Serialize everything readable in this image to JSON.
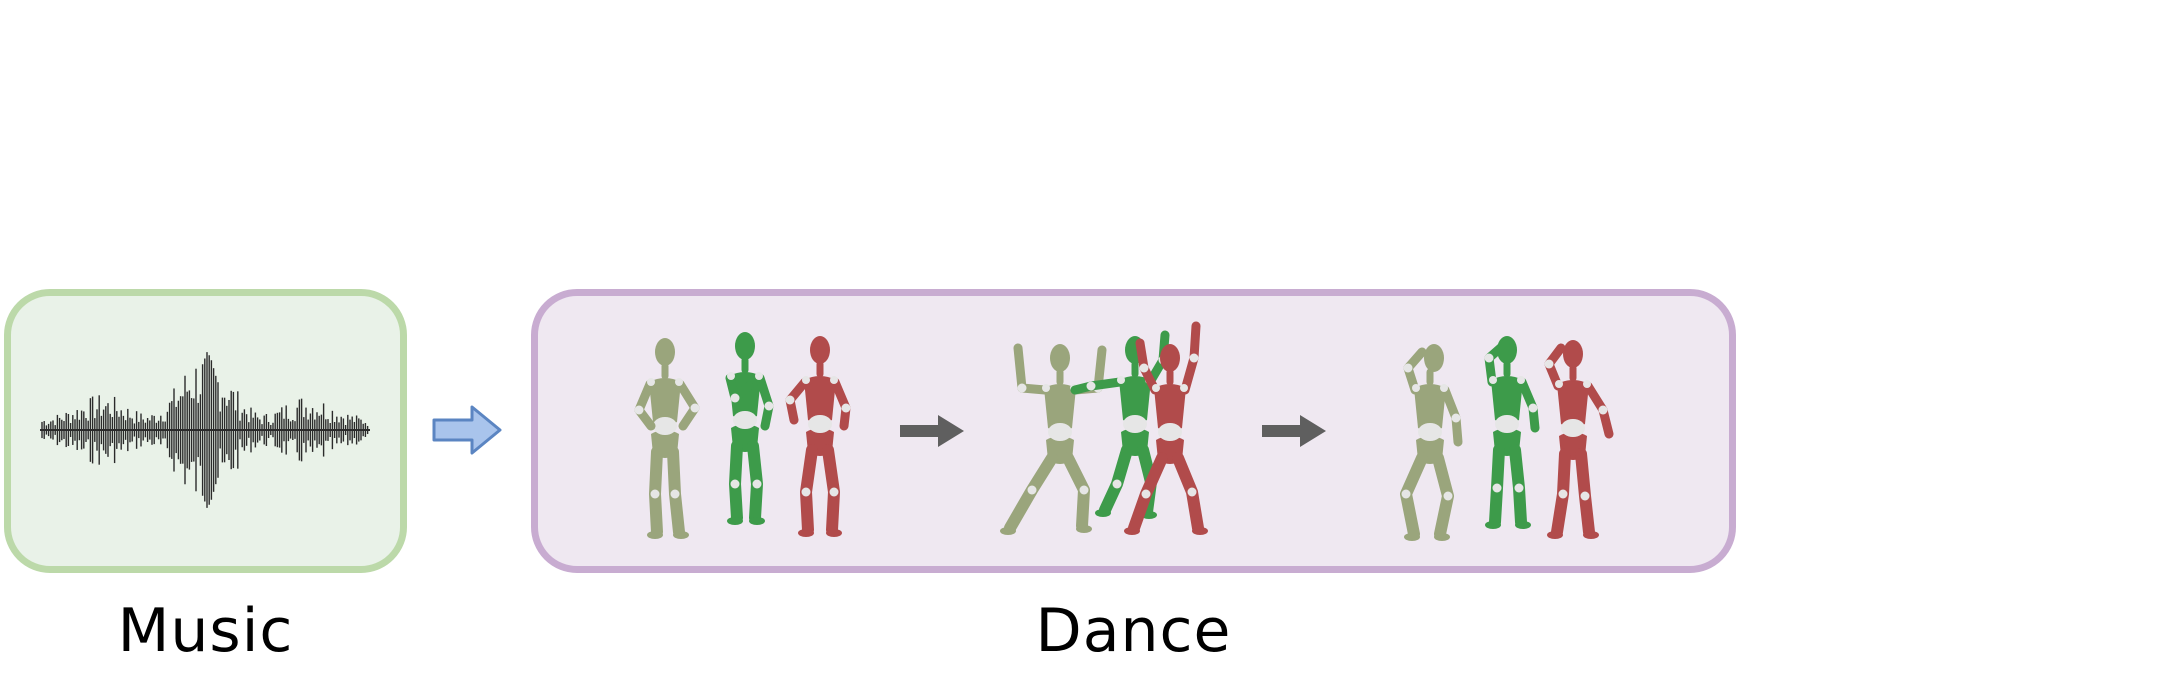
{
  "labels": {
    "music": "Music",
    "dance": "Dance"
  },
  "colors": {
    "music_panel_fill": "#e9f2e8",
    "music_panel_border": "#bcd9a9",
    "dance_panel_fill": "#efe8f1",
    "dance_panel_border": "#c8acd1",
    "input_arrow": "#a9c4ec",
    "input_arrow_border": "#5b85c2",
    "sequence_arrow": "#5f5f5f",
    "dancer_olive": "#9aa57c",
    "dancer_green": "#3d9b4a",
    "dancer_red": "#b14b4b",
    "joint_white": "#e6e6e6"
  },
  "icons": {
    "waveform": "audio-waveform-icon",
    "input_arrow": "right-arrow-outline-icon",
    "sequence_arrow": "right-arrow-solid-icon",
    "dancer": "mannequin-figure"
  }
}
